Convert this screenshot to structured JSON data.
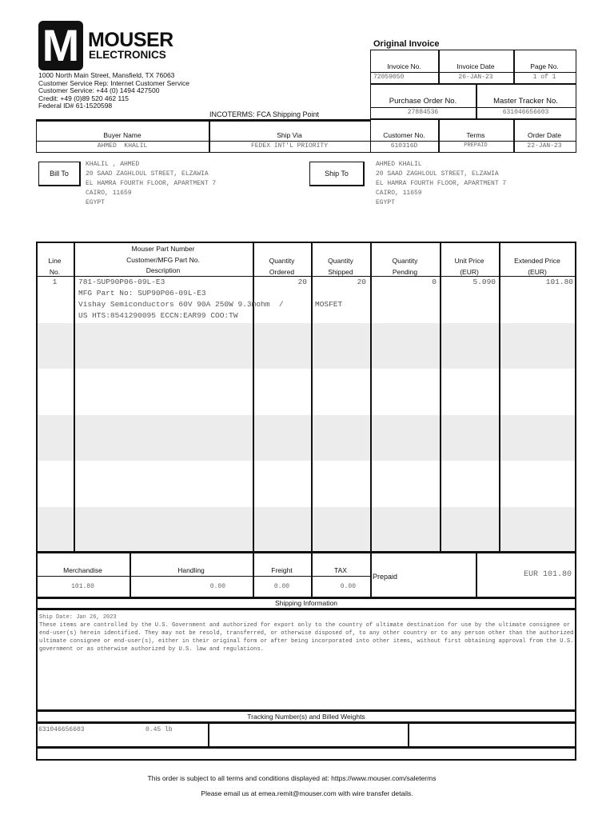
{
  "company": {
    "logo_letter": "M",
    "name": "MOUSER",
    "subname": "ELECTRONICS",
    "address_lines": [
      "1000 North Main Street, Mansfield, TX 76063",
      "Customer Service Rep: Internet Customer Service",
      "Customer Service: +44 (0) 1494 427500",
      "Credit: +49 (0)89 520 462 115",
      "Federal ID# 61-1520598"
    ]
  },
  "incoterms": "INCOTERMS: FCA Shipping Point",
  "invoice": {
    "title": "Original Invoice",
    "invoice_no_label": "Invoice No.",
    "invoice_no": "72059050",
    "invoice_date_label": "Invoice Date",
    "invoice_date": "26-JAN-23",
    "page_no_label": "Page No.",
    "page_no": "1 of 1",
    "po_label": "Purchase Order No.",
    "po": "27884536",
    "tracker_label": "Master Tracker No.",
    "tracker": "631046656603",
    "customer_no_label": "Customer No.",
    "customer_no": "610316D",
    "terms_label": "Terms",
    "terms": "PREPAID",
    "order_date_label": "Order Date",
    "order_date": "22-JAN-23"
  },
  "buyer": {
    "name_label": "Buyer Name",
    "name": "AHMED  KHALIL",
    "ship_via_label": "Ship Via",
    "ship_via": "FEDEX INT'L PRIORITY"
  },
  "bill_to": {
    "label": "Bill To",
    "lines": "KHALIL , AHMED\n20 SAAD ZAGHLOUL STREET, ELZAWIA\nEL HAMRA FOURTH FLOOR, APARTMENT 7\nCAIRO, 11659\nEGYPT"
  },
  "ship_to": {
    "label": "Ship To",
    "lines": "AHMED KHALIL\n20 SAAD ZAGHLOUL STREET, ELZAWIA\nEL HAMRA FOURTH FLOOR, APARTMENT 7\nCAIRO, 11659\nEGYPT"
  },
  "table": {
    "headers": {
      "line": "Line",
      "line2": "No.",
      "part1": "Mouser Part Number",
      "part2": "Customer/MFG Part No.",
      "part3": "Description",
      "qo1": "Quantity",
      "qo2": "Ordered",
      "qs1": "Quantity",
      "qs2": "Shipped",
      "qp1": "Quantity",
      "qp2": "Pending",
      "up1": "Unit Price",
      "up2": "(EUR)",
      "ep1": "Extended Price",
      "ep2": "(EUR)"
    },
    "rows": [
      {
        "line": "1",
        "part": "781-SUP90P06-09L-E3",
        "mfg": "MFG Part No: SUP90P06-09L-E3",
        "desc": "Vishay Semiconductors 60V 90A 250W 9.3mohm  /",
        "desc2": "MOSFET",
        "hts": "US HTS:8541290095 ECCN:EAR99 COO:TW",
        "qty_ordered": "20",
        "qty_shipped": "20",
        "qty_pending": "0",
        "unit_price": "5.090",
        "extended": "101.80"
      }
    ]
  },
  "totals": {
    "merch_label": "Merchandise",
    "merch": "101.80",
    "handling_label": "Handling",
    "handling": "0.00",
    "freight_label": "Freight",
    "freight": "0.00",
    "tax_label": "TAX",
    "tax": "0.00",
    "payment": "Prepaid",
    "total": "EUR 101.80"
  },
  "shipping": {
    "label": "Shipping Information",
    "ship_date": "Ship Date: Jan 26, 2023",
    "notice": "These items are controlled by the U.S. Government and authorized for export only to the country of ultimate destination for use by the ultimate consignee or end-user(s) herein identified. They may not be resold, transferred, or otherwise disposed of, to any other country or to any person other than the authorized ultimate consignee or end-user(s), either in their original form or after being incorporated into other items, without first obtaining approval from the U.S. government or as otherwise authorized by U.S. law and regulations."
  },
  "tracking": {
    "label": "Tracking Number(s) and Billed Weights",
    "number": "631046656603",
    "weight": "0.45 lb"
  },
  "footer": {
    "line1": "This order is subject to all terms and conditions displayed at: https://www.mouser.com/saleterms",
    "line2": "Please email us at emea.remit@mouser.com with wire transfer details."
  }
}
